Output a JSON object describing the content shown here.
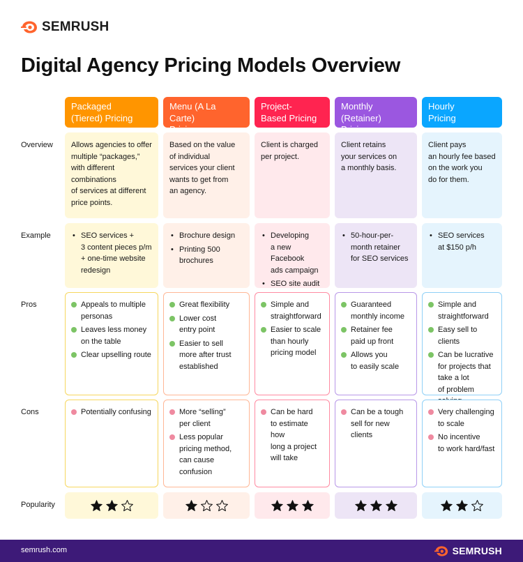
{
  "brand": {
    "name": "SEMRUSH",
    "logo_icon": "flame-icon",
    "accent": "#ff642d"
  },
  "title": "Digital Agency Pricing Models Overview",
  "row_labels": {
    "overview": "Overview",
    "example": "Example",
    "pros": "Pros",
    "cons": "Cons",
    "popularity": "Popularity"
  },
  "colors": {
    "pro_dot": "#7cc465",
    "con_dot": "#ef8aa0",
    "star": "#111111",
    "footer_bg": "#3d1a78"
  },
  "models": [
    {
      "name": "Packaged\n(Tiered) Pricing",
      "header_color": "#ff9500",
      "tint": "#fff8d9",
      "border": "#f7d75e",
      "overview": "Allows agencies to offer\nmultiple “packages,”\nwith different\ncombinations\nof services at different\nprice points.",
      "example": [
        "SEO services +\n3 content pieces p/m\n+ one-time website\nredesign"
      ],
      "pros": [
        "Appeals to multiple\npersonas",
        "Leaves less money\non the table",
        "Clear upselling route"
      ],
      "cons": [
        "Potentially confusing"
      ],
      "stars": 2
    },
    {
      "name": "Menu (A La Carte)\nPricing",
      "header_color": "#ff642d",
      "tint": "#fff0e8",
      "border": "#ffb796",
      "overview": "Based on the value\nof individual\nservices your client\nwants to get from\nan agency.",
      "example": [
        "Brochure design",
        "Printing 500\nbrochures"
      ],
      "pros": [
        "Great flexibility",
        "Lower cost\nentry point",
        "Easier to sell\nmore after trust\nestablished"
      ],
      "cons": [
        "More “selling”\nper client",
        "Less popular\npricing method,\ncan cause\nconfusion"
      ],
      "stars": 1
    },
    {
      "name": "Project-\nBased Pricing",
      "header_color": "#ff2450",
      "tint": "#ffe9ec",
      "border": "#ff8aa1",
      "overview": "Client is charged\nper project.",
      "example": [
        "Developing\na new Facebook\nads campaign",
        "SEO site audit"
      ],
      "pros": [
        "Simple and\nstraightforward",
        "Easier to scale\nthan hourly\npricing model"
      ],
      "cons": [
        "Can be hard\nto estimate how\nlong a project\nwill take"
      ],
      "stars": 3
    },
    {
      "name": "Monthly\n(Retainer) Pricing",
      "header_color": "#9b57e0",
      "tint": "#ede5f6",
      "border": "#b897e8",
      "overview": "Client retains\nyour services on\na monthly basis.",
      "example": [
        "50-hour-per-\nmonth retainer\nfor SEO services"
      ],
      "pros": [
        "Guaranteed\nmonthly income",
        "Retainer fee\npaid up front",
        "Allows you\nto easily scale"
      ],
      "cons": [
        "Can be a tough\nsell for new\nclients"
      ],
      "stars": 3
    },
    {
      "name": "Hourly\nPricing",
      "header_color": "#0aa6ff",
      "tint": "#e5f4fd",
      "border": "#8fd0f7",
      "overview": "Client pays\nan hourly fee based\non the work you\ndo for them.",
      "example": [
        "SEO services\nat $150 p/h"
      ],
      "pros": [
        "Simple and\nstraightforward",
        "Easy sell to clients",
        "Can be lucrative\nfor projects that\ntake a lot\nof problem solving"
      ],
      "cons": [
        "Very challenging\nto scale",
        "No incentive\nto work hard/fast"
      ],
      "stars": 2
    }
  ],
  "footer": {
    "url": "semrush.com"
  }
}
